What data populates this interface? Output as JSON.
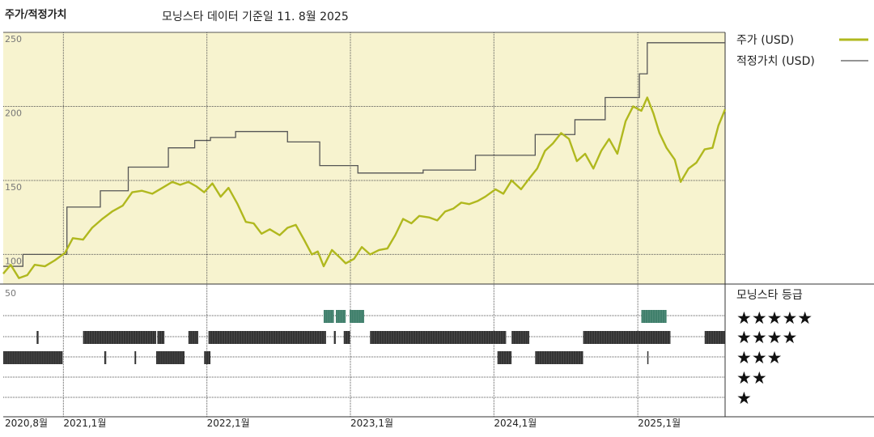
{
  "header": {
    "title": "주가/적정가치",
    "subtitle": "모닝스타 데이터 기준일 11. 8월 2025"
  },
  "colors": {
    "plot_bg": "#f7f3cf",
    "price_line": "#b0b81e",
    "fair_value_line": "#555555",
    "five_star": "#3f7f6b",
    "rating_bar": "#333333",
    "grid": "#555555"
  },
  "chart_data": {
    "type": "line",
    "y_ticks": [
      "250",
      "200",
      "150",
      "100"
    ],
    "ylim": [
      80,
      250
    ],
    "x_ticks": [
      {
        "label": "2020,8월",
        "date": "2020-08-01"
      },
      {
        "label": "2021,1월",
        "date": "2021-01-01"
      },
      {
        "label": "2022,1월",
        "date": "2022-01-01"
      },
      {
        "label": "2023,1월",
        "date": "2023-01-01"
      },
      {
        "label": "2024,1월",
        "date": "2024-01-01"
      },
      {
        "label": "2025,1월",
        "date": "2025-01-01"
      }
    ],
    "xlim": [
      "2020-08-01",
      "2025-08-11"
    ],
    "legend_position": "right",
    "series": [
      {
        "name": "주가 (USD)",
        "style": "thick",
        "points": [
          [
            "2020-08-01",
            87
          ],
          [
            "2020-08-20",
            93
          ],
          [
            "2020-09-10",
            84
          ],
          [
            "2020-10-01",
            86
          ],
          [
            "2020-10-20",
            93
          ],
          [
            "2020-11-15",
            92
          ],
          [
            "2020-12-10",
            96
          ],
          [
            "2021-01-05",
            101
          ],
          [
            "2021-01-25",
            111
          ],
          [
            "2021-02-20",
            110
          ],
          [
            "2021-03-15",
            118
          ],
          [
            "2021-04-10",
            124
          ],
          [
            "2021-05-05",
            129
          ],
          [
            "2021-06-01",
            133
          ],
          [
            "2021-06-25",
            142
          ],
          [
            "2021-07-20",
            143
          ],
          [
            "2021-08-15",
            141
          ],
          [
            "2021-09-10",
            145
          ],
          [
            "2021-10-05",
            149
          ],
          [
            "2021-10-25",
            147
          ],
          [
            "2021-11-15",
            149
          ],
          [
            "2021-12-05",
            146
          ],
          [
            "2021-12-25",
            142
          ],
          [
            "2022-01-15",
            148
          ],
          [
            "2022-02-05",
            139
          ],
          [
            "2022-02-25",
            145
          ],
          [
            "2022-03-20",
            134
          ],
          [
            "2022-04-10",
            122
          ],
          [
            "2022-04-30",
            121
          ],
          [
            "2022-05-20",
            114
          ],
          [
            "2022-06-10",
            117
          ],
          [
            "2022-07-05",
            113
          ],
          [
            "2022-07-25",
            118
          ],
          [
            "2022-08-15",
            120
          ],
          [
            "2022-09-05",
            110
          ],
          [
            "2022-09-25",
            100
          ],
          [
            "2022-10-10",
            102
          ],
          [
            "2022-10-25",
            92
          ],
          [
            "2022-11-15",
            103
          ],
          [
            "2022-12-05",
            98
          ],
          [
            "2022-12-20",
            94
          ],
          [
            "2023-01-10",
            97
          ],
          [
            "2023-01-30",
            105
          ],
          [
            "2023-02-20",
            100
          ],
          [
            "2023-03-15",
            103
          ],
          [
            "2023-04-05",
            104
          ],
          [
            "2023-04-25",
            113
          ],
          [
            "2023-05-15",
            124
          ],
          [
            "2023-06-05",
            121
          ],
          [
            "2023-06-25",
            126
          ],
          [
            "2023-07-20",
            125
          ],
          [
            "2023-08-10",
            123
          ],
          [
            "2023-08-30",
            129
          ],
          [
            "2023-09-20",
            131
          ],
          [
            "2023-10-10",
            135
          ],
          [
            "2023-10-30",
            134
          ],
          [
            "2023-11-20",
            136
          ],
          [
            "2023-12-10",
            139
          ],
          [
            "2024-01-05",
            144
          ],
          [
            "2024-01-25",
            141
          ],
          [
            "2024-02-15",
            150
          ],
          [
            "2024-03-10",
            144
          ],
          [
            "2024-03-30",
            151
          ],
          [
            "2024-04-20",
            158
          ],
          [
            "2024-05-10",
            170
          ],
          [
            "2024-05-30",
            175
          ],
          [
            "2024-06-20",
            182
          ],
          [
            "2024-07-10",
            178
          ],
          [
            "2024-07-30",
            163
          ],
          [
            "2024-08-20",
            168
          ],
          [
            "2024-09-10",
            158
          ],
          [
            "2024-09-30",
            170
          ],
          [
            "2024-10-20",
            178
          ],
          [
            "2024-11-10",
            168
          ],
          [
            "2024-12-01",
            190
          ],
          [
            "2024-12-20",
            200
          ],
          [
            "2025-01-10",
            197
          ],
          [
            "2025-01-25",
            206
          ],
          [
            "2025-02-10",
            195
          ],
          [
            "2025-02-25",
            182
          ],
          [
            "2025-03-15",
            172
          ],
          [
            "2025-04-05",
            164
          ],
          [
            "2025-04-20",
            149
          ],
          [
            "2025-05-10",
            158
          ],
          [
            "2025-05-30",
            162
          ],
          [
            "2025-06-20",
            171
          ],
          [
            "2025-07-10",
            172
          ],
          [
            "2025-07-25",
            187
          ],
          [
            "2025-08-11",
            198
          ]
        ]
      },
      {
        "name": "적정가치 (USD)",
        "style": "step",
        "points": [
          [
            "2020-08-01",
            92
          ],
          [
            "2020-09-20",
            100
          ],
          [
            "2021-01-10",
            132
          ],
          [
            "2021-04-05",
            143
          ],
          [
            "2021-06-15",
            159
          ],
          [
            "2021-09-25",
            172
          ],
          [
            "2021-12-01",
            177
          ],
          [
            "2022-01-10",
            179
          ],
          [
            "2022-03-15",
            183
          ],
          [
            "2022-07-25",
            176
          ],
          [
            "2022-10-15",
            160
          ],
          [
            "2023-01-20",
            155
          ],
          [
            "2023-07-05",
            157
          ],
          [
            "2023-11-15",
            167
          ],
          [
            "2024-04-15",
            181
          ],
          [
            "2024-07-25",
            191
          ],
          [
            "2024-10-10",
            206
          ],
          [
            "2025-01-05",
            222
          ],
          [
            "2025-01-25",
            243
          ],
          [
            "2025-08-11",
            243
          ]
        ]
      }
    ]
  },
  "rating": {
    "title": "모닝스타 등급",
    "y_tick": "50",
    "stars": [
      "★★★★★",
      "★★★★",
      "★★★",
      "★★",
      "★"
    ],
    "bands": [
      {
        "stars": 5,
        "start": "2022-10-25",
        "end": "2022-11-20"
      },
      {
        "stars": 5,
        "start": "2022-11-25",
        "end": "2022-12-20"
      },
      {
        "stars": 5,
        "start": "2022-12-30",
        "end": "2023-02-05"
      },
      {
        "stars": 5,
        "start": "2025-01-10",
        "end": "2025-03-15"
      },
      {
        "stars": 4,
        "start": "2020-10-25",
        "end": "2020-10-30"
      },
      {
        "stars": 4,
        "start": "2021-02-20",
        "end": "2021-08-25"
      },
      {
        "stars": 4,
        "start": "2021-08-28",
        "end": "2021-09-15"
      },
      {
        "stars": 4,
        "start": "2021-11-15",
        "end": "2021-12-10"
      },
      {
        "stars": 4,
        "start": "2022-01-05",
        "end": "2022-10-31"
      },
      {
        "stars": 4,
        "start": "2022-11-20",
        "end": "2022-11-25"
      },
      {
        "stars": 4,
        "start": "2022-12-15",
        "end": "2022-12-31"
      },
      {
        "stars": 4,
        "start": "2023-02-20",
        "end": "2024-02-01"
      },
      {
        "stars": 4,
        "start": "2024-02-15",
        "end": "2024-03-31"
      },
      {
        "stars": 4,
        "start": "2024-08-15",
        "end": "2025-03-25"
      },
      {
        "stars": 4,
        "start": "2025-06-20",
        "end": "2025-08-11"
      },
      {
        "stars": 3,
        "start": "2020-08-01",
        "end": "2020-12-30"
      },
      {
        "stars": 3,
        "start": "2021-04-15",
        "end": "2021-04-20"
      },
      {
        "stars": 3,
        "start": "2021-07-01",
        "end": "2021-07-05"
      },
      {
        "stars": 3,
        "start": "2021-08-25",
        "end": "2021-11-05"
      },
      {
        "stars": 3,
        "start": "2021-12-25",
        "end": "2022-01-10"
      },
      {
        "stars": 3,
        "start": "2024-01-10",
        "end": "2024-02-15"
      },
      {
        "stars": 3,
        "start": "2024-04-15",
        "end": "2024-08-15"
      },
      {
        "stars": 3,
        "start": "2025-01-25",
        "end": "2025-01-28"
      }
    ]
  }
}
